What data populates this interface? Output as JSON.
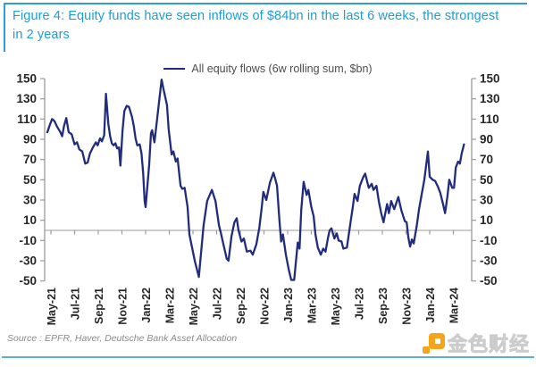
{
  "figure": {
    "title": "Figure 4: Equity funds have seen inflows of $84bn in the last 6 weeks, the strongest in 2 years",
    "source_note": "Source : EPFR, Haver, Deutsche Bank Asset Allocation",
    "watermark_text": "金色财经"
  },
  "colors": {
    "title_blue": "#1E9CD6",
    "border_blue": "#2E9FD6",
    "border_blue_light": "#58AEDC",
    "line_navy": "#222C7D",
    "axis_gray": "#9B9B9B",
    "label_dark": "#262626",
    "watermark_orange": "#F5A41C"
  },
  "chart_data": {
    "type": "line",
    "title": "",
    "legend": [
      "All equity flows (6w rolling sum, $bn)"
    ],
    "legend_position": "top-center",
    "grid": false,
    "x_axis": {
      "tick_labels": [
        "May-21",
        "Jul-21",
        "Sep-21",
        "Nov-21",
        "Jan-22",
        "Mar-22",
        "May-22",
        "Jul-22",
        "Sep-22",
        "Nov-22",
        "Jan-23",
        "Mar-23",
        "May-23",
        "Jul-23",
        "Sep-23",
        "Nov-23",
        "Jan-24",
        "Mar-24"
      ],
      "months_between_ticks": 2,
      "label_rotation_deg": -90
    },
    "y_axis": {
      "min": -50,
      "max": 150,
      "tick_step": 20,
      "ticks": [
        150,
        130,
        110,
        90,
        70,
        50,
        30,
        10,
        -10,
        -30,
        -50
      ],
      "sides": "both"
    },
    "series": [
      {
        "name": "All equity flows (6w rolling sum, $bn)",
        "color": "#222C7D",
        "x_unit": "months_after_May_2021",
        "y_unit": "$bn",
        "points": [
          [
            -0.3,
            97
          ],
          [
            -0.1,
            104
          ],
          [
            0.1,
            110
          ],
          [
            0.3,
            108
          ],
          [
            0.5,
            103
          ],
          [
            0.65,
            100
          ],
          [
            0.8,
            97
          ],
          [
            0.95,
            93
          ],
          [
            1.1,
            103
          ],
          [
            1.3,
            111
          ],
          [
            1.5,
            97
          ],
          [
            1.75,
            95
          ],
          [
            2.0,
            85
          ],
          [
            2.2,
            87
          ],
          [
            2.4,
            80
          ],
          [
            2.65,
            78
          ],
          [
            2.9,
            66
          ],
          [
            3.1,
            67
          ],
          [
            3.3,
            76
          ],
          [
            3.55,
            82
          ],
          [
            3.8,
            87
          ],
          [
            3.95,
            84
          ],
          [
            4.15,
            91
          ],
          [
            4.3,
            88
          ],
          [
            4.5,
            94
          ],
          [
            4.65,
            135
          ],
          [
            4.85,
            105
          ],
          [
            5.0,
            93
          ],
          [
            5.15,
            86
          ],
          [
            5.3,
            84
          ],
          [
            5.45,
            86
          ],
          [
            5.6,
            81
          ],
          [
            5.75,
            82
          ],
          [
            5.87,
            64
          ],
          [
            6.05,
            99
          ],
          [
            6.2,
            118
          ],
          [
            6.4,
            123
          ],
          [
            6.6,
            122
          ],
          [
            6.85,
            112
          ],
          [
            7.0,
            103
          ],
          [
            7.15,
            91
          ],
          [
            7.3,
            84
          ],
          [
            7.5,
            85
          ],
          [
            7.65,
            76
          ],
          [
            7.8,
            56
          ],
          [
            7.92,
            29
          ],
          [
            8.0,
            23
          ],
          [
            8.3,
            65
          ],
          [
            8.45,
            96
          ],
          [
            8.55,
            99
          ],
          [
            8.75,
            87
          ],
          [
            9.05,
            118
          ],
          [
            9.35,
            149
          ],
          [
            9.5,
            140
          ],
          [
            9.8,
            124
          ],
          [
            9.95,
            100
          ],
          [
            10.2,
            75
          ],
          [
            10.35,
            78
          ],
          [
            10.55,
            68
          ],
          [
            10.7,
            71
          ],
          [
            10.95,
            44
          ],
          [
            11.1,
            41
          ],
          [
            11.3,
            42
          ],
          [
            11.55,
            23
          ],
          [
            11.7,
            -4
          ],
          [
            12.15,
            -30
          ],
          [
            12.5,
            -46
          ],
          [
            12.9,
            5
          ],
          [
            13.2,
            29
          ],
          [
            13.6,
            40
          ],
          [
            13.9,
            29
          ],
          [
            14.2,
            5
          ],
          [
            14.35,
            -2
          ],
          [
            14.6,
            -15
          ],
          [
            14.85,
            -28
          ],
          [
            15.0,
            -30
          ],
          [
            15.25,
            -6
          ],
          [
            15.5,
            8
          ],
          [
            15.7,
            12
          ],
          [
            15.85,
            0
          ],
          [
            16.1,
            -11
          ],
          [
            16.3,
            -8
          ],
          [
            16.55,
            -21
          ],
          [
            16.85,
            -20
          ],
          [
            17.05,
            -24
          ],
          [
            17.35,
            -14
          ],
          [
            17.6,
            2
          ],
          [
            17.8,
            22
          ],
          [
            17.95,
            38
          ],
          [
            18.2,
            30
          ],
          [
            18.5,
            47
          ],
          [
            18.8,
            57
          ],
          [
            18.95,
            51
          ],
          [
            19.1,
            44
          ],
          [
            19.3,
            11
          ],
          [
            19.45,
            -11
          ],
          [
            19.6,
            -4
          ],
          [
            19.85,
            -24
          ],
          [
            20.1,
            -39
          ],
          [
            20.3,
            -49
          ],
          [
            20.55,
            -49
          ],
          [
            20.85,
            -12
          ],
          [
            21.0,
            -18
          ],
          [
            21.15,
            20
          ],
          [
            21.35,
            48
          ],
          [
            21.6,
            35
          ],
          [
            21.75,
            40
          ],
          [
            22.0,
            23
          ],
          [
            22.2,
            14
          ],
          [
            22.35,
            -4
          ],
          [
            22.55,
            -17
          ],
          [
            22.8,
            -24
          ],
          [
            23.0,
            -18
          ],
          [
            23.2,
            -21
          ],
          [
            23.4,
            -8
          ],
          [
            23.55,
            0
          ],
          [
            23.7,
            2
          ],
          [
            23.95,
            -8
          ],
          [
            24.15,
            -3
          ],
          [
            24.3,
            -10
          ],
          [
            24.55,
            -11
          ],
          [
            24.7,
            -18
          ],
          [
            25.0,
            -17
          ],
          [
            25.35,
            11
          ],
          [
            25.5,
            23
          ],
          [
            25.65,
            36
          ],
          [
            25.9,
            29
          ],
          [
            26.1,
            44
          ],
          [
            26.4,
            53
          ],
          [
            26.55,
            56
          ],
          [
            26.85,
            42
          ],
          [
            27.1,
            46
          ],
          [
            27.25,
            40
          ],
          [
            27.5,
            44
          ],
          [
            27.7,
            29
          ],
          [
            27.9,
            17
          ],
          [
            28.1,
            8
          ],
          [
            28.4,
            26
          ],
          [
            28.55,
            17
          ],
          [
            28.75,
            29
          ],
          [
            29.0,
            21
          ],
          [
            29.35,
            33
          ],
          [
            29.6,
            20
          ],
          [
            29.9,
            9
          ],
          [
            30.05,
            8
          ],
          [
            30.2,
            -7
          ],
          [
            30.35,
            -16
          ],
          [
            30.5,
            -9
          ],
          [
            30.65,
            -13
          ],
          [
            30.9,
            4
          ],
          [
            31.1,
            21
          ],
          [
            31.3,
            34
          ],
          [
            31.55,
            50
          ],
          [
            31.85,
            78
          ],
          [
            32.0,
            53
          ],
          [
            32.25,
            50
          ],
          [
            32.45,
            49
          ],
          [
            32.7,
            43
          ],
          [
            32.9,
            37
          ],
          [
            33.15,
            25
          ],
          [
            33.3,
            17
          ],
          [
            33.5,
            34
          ],
          [
            33.65,
            50
          ],
          [
            33.9,
            42
          ],
          [
            34.05,
            42
          ],
          [
            34.2,
            62
          ],
          [
            34.4,
            68
          ],
          [
            34.55,
            66
          ],
          [
            34.7,
            76
          ],
          [
            34.9,
            85
          ]
        ]
      }
    ]
  }
}
